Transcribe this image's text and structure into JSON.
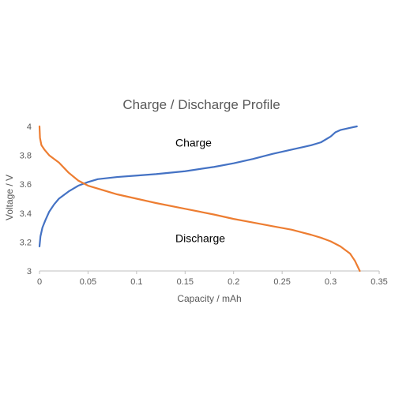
{
  "chart_data": {
    "type": "line",
    "title": "Charge / Discharge Profile",
    "xlabel": "Capacity / mAh",
    "ylabel": "Voltage / V",
    "xlim": [
      0,
      0.35
    ],
    "ylim": [
      3,
      4
    ],
    "xticks": [
      "0",
      "0.05",
      "0.1",
      "0.15",
      "0.2",
      "0.25",
      "0.3",
      "0.35"
    ],
    "yticks": [
      "3",
      "3.2",
      "3.4",
      "3.6",
      "3.8",
      "4"
    ],
    "grid": false,
    "legend": "none",
    "series": [
      {
        "name": "Charge",
        "color": "#4472C4",
        "points": [
          [
            0,
            3.17
          ],
          [
            0.001,
            3.24
          ],
          [
            0.003,
            3.3
          ],
          [
            0.006,
            3.35
          ],
          [
            0.01,
            3.41
          ],
          [
            0.015,
            3.46
          ],
          [
            0.02,
            3.5
          ],
          [
            0.03,
            3.55
          ],
          [
            0.04,
            3.59
          ],
          [
            0.05,
            3.615
          ],
          [
            0.06,
            3.635
          ],
          [
            0.08,
            3.65
          ],
          [
            0.1,
            3.66
          ],
          [
            0.12,
            3.67
          ],
          [
            0.15,
            3.69
          ],
          [
            0.18,
            3.72
          ],
          [
            0.2,
            3.745
          ],
          [
            0.22,
            3.775
          ],
          [
            0.24,
            3.81
          ],
          [
            0.26,
            3.84
          ],
          [
            0.28,
            3.87
          ],
          [
            0.29,
            3.89
          ],
          [
            0.3,
            3.93
          ],
          [
            0.305,
            3.96
          ],
          [
            0.31,
            3.975
          ],
          [
            0.32,
            3.99
          ],
          [
            0.327,
            4.0
          ]
        ]
      },
      {
        "name": "Discharge",
        "color": "#ED7D31",
        "points": [
          [
            0,
            4.0
          ],
          [
            0.0005,
            3.92
          ],
          [
            0.002,
            3.87
          ],
          [
            0.005,
            3.84
          ],
          [
            0.01,
            3.8
          ],
          [
            0.02,
            3.75
          ],
          [
            0.03,
            3.68
          ],
          [
            0.04,
            3.625
          ],
          [
            0.05,
            3.59
          ],
          [
            0.06,
            3.57
          ],
          [
            0.08,
            3.53
          ],
          [
            0.1,
            3.5
          ],
          [
            0.12,
            3.47
          ],
          [
            0.15,
            3.43
          ],
          [
            0.18,
            3.39
          ],
          [
            0.2,
            3.36
          ],
          [
            0.22,
            3.335
          ],
          [
            0.24,
            3.31
          ],
          [
            0.26,
            3.285
          ],
          [
            0.28,
            3.25
          ],
          [
            0.29,
            3.23
          ],
          [
            0.3,
            3.205
          ],
          [
            0.31,
            3.17
          ],
          [
            0.32,
            3.12
          ],
          [
            0.325,
            3.07
          ],
          [
            0.33,
            3.0
          ]
        ]
      }
    ],
    "annotations": [
      {
        "text": "Charge",
        "x": 0.14,
        "y": 3.86
      },
      {
        "text": "Discharge",
        "x": 0.14,
        "y": 3.2
      }
    ]
  }
}
